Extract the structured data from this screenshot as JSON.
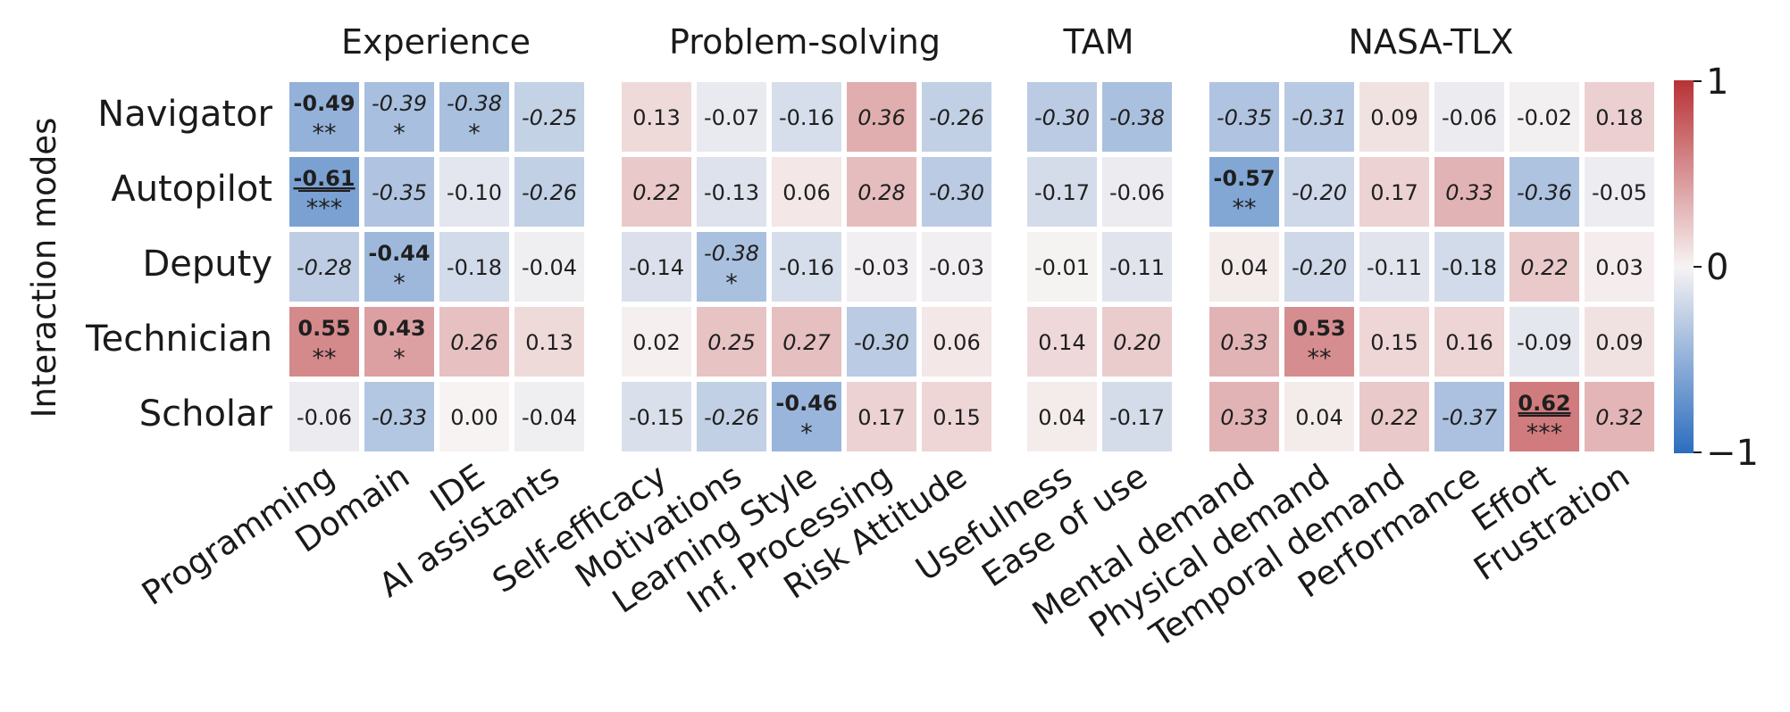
{
  "chart_data": {
    "type": "heatmap",
    "ylabel": "Interaction modes",
    "rows": [
      "Navigator",
      "Autopilot",
      "Deputy",
      "Technician",
      "Scholar"
    ],
    "groups": [
      {
        "name": "Experience",
        "columns": [
          "Programming",
          "Domain",
          "IDE",
          "AI assistants"
        ]
      },
      {
        "name": "Problem-solving",
        "columns": [
          "Self-efficacy",
          "Motivations",
          "Learning Style",
          "Inf. Processing",
          "Risk Attitude"
        ]
      },
      {
        "name": "TAM",
        "columns": [
          "Usefulness",
          "Ease of use"
        ]
      },
      {
        "name": "NASA-TLX",
        "columns": [
          "Mental demand",
          "Physical demand",
          "Temporal demand",
          "Performance",
          "Effort",
          "Frustration"
        ]
      }
    ],
    "values": [
      [
        -0.49,
        -0.39,
        -0.38,
        -0.25,
        0.13,
        -0.07,
        -0.16,
        0.36,
        -0.26,
        -0.3,
        -0.38,
        -0.35,
        -0.31,
        0.09,
        -0.06,
        -0.02,
        0.18
      ],
      [
        -0.61,
        -0.35,
        -0.1,
        -0.26,
        0.22,
        -0.13,
        0.06,
        0.28,
        -0.3,
        -0.17,
        -0.06,
        -0.57,
        -0.2,
        0.17,
        0.33,
        -0.36,
        -0.05
      ],
      [
        -0.28,
        -0.44,
        -0.18,
        -0.04,
        -0.14,
        -0.38,
        -0.16,
        -0.03,
        -0.03,
        -0.01,
        -0.11,
        0.04,
        -0.2,
        -0.11,
        -0.18,
        0.22,
        0.03
      ],
      [
        0.55,
        0.43,
        0.26,
        0.13,
        0.02,
        0.25,
        0.27,
        -0.3,
        0.06,
        0.14,
        0.2,
        0.33,
        0.53,
        0.15,
        0.16,
        -0.09,
        0.09
      ],
      [
        -0.06,
        -0.33,
        0.0,
        -0.04,
        -0.15,
        -0.26,
        -0.46,
        0.17,
        0.15,
        0.04,
        -0.17,
        0.33,
        0.04,
        0.22,
        -0.37,
        0.62,
        0.32
      ]
    ],
    "significance": [
      [
        "**",
        "*",
        "*",
        "",
        "",
        "",
        "",
        "",
        "",
        "",
        "",
        "",
        "",
        "",
        "",
        "",
        ""
      ],
      [
        "***",
        "",
        "",
        "",
        "",
        "",
        "",
        "",
        "",
        "",
        "",
        "**",
        "",
        "",
        "",
        "",
        ""
      ],
      [
        "",
        "*",
        "",
        "",
        "",
        "*",
        "",
        "",
        "",
        "",
        "",
        "",
        "",
        "",
        "",
        "",
        ""
      ],
      [
        "**",
        "*",
        "",
        "",
        "",
        "",
        "",
        "",
        "",
        "",
        "",
        "",
        "**",
        "",
        "",
        "",
        ""
      ],
      [
        "",
        "",
        "",
        "",
        "",
        "",
        "*",
        "",
        "",
        "",
        "",
        "",
        "",
        "",
        "",
        "***",
        ""
      ]
    ],
    "style": [
      [
        "b",
        "i",
        "i",
        "i",
        "n",
        "n",
        "n",
        "i",
        "i",
        "i",
        "i",
        "i",
        "i",
        "n",
        "n",
        "n",
        "n"
      ],
      [
        "bu",
        "i",
        "n",
        "i",
        "i",
        "n",
        "n",
        "i",
        "i",
        "n",
        "n",
        "b",
        "i",
        "n",
        "i",
        "i",
        "n"
      ],
      [
        "i",
        "b",
        "n",
        "n",
        "n",
        "i",
        "n",
        "n",
        "n",
        "n",
        "n",
        "n",
        "i",
        "n",
        "n",
        "i",
        "n"
      ],
      [
        "b",
        "b",
        "i",
        "n",
        "n",
        "i",
        "i",
        "i",
        "n",
        "n",
        "i",
        "i",
        "b",
        "n",
        "n",
        "n",
        "n"
      ],
      [
        "n",
        "i",
        "n",
        "n",
        "n",
        "i",
        "b",
        "n",
        "n",
        "n",
        "n",
        "i",
        "n",
        "i",
        "i",
        "bu",
        "i"
      ]
    ],
    "colorbar": {
      "range": [
        -1,
        1
      ],
      "ticks": [
        "1",
        "0",
        "−1"
      ],
      "colors": {
        "negative": "#2c6dbf",
        "neutral": "#f7f3f3",
        "positive": "#b83236"
      }
    }
  }
}
